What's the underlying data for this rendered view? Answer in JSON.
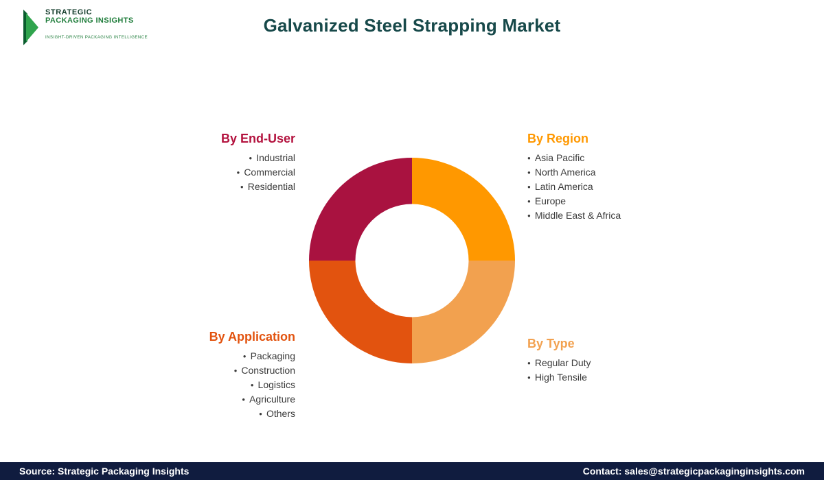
{
  "header": {
    "logo": {
      "line1": "STRATEGIC",
      "line2": "PACKAGING INSIGHTS",
      "tagline": "INSIGHT-DRIVEN PACKAGING INTELLIGENCE",
      "green_dark": "#0a5c2e",
      "green_light": "#2fa44d"
    },
    "title": "Galvanized Steel Strapping Market",
    "title_color": "#17494a"
  },
  "chart_data": {
    "type": "pie",
    "title": "Market segmentation donut (four equal quadrants)",
    "inner_radius_ratio": 0.55,
    "segments": [
      {
        "label": "By Region",
        "value": 25,
        "color": "#ff9800",
        "position": "top-right"
      },
      {
        "label": "By Type",
        "value": 25,
        "color": "#f2a14f",
        "position": "bottom-right"
      },
      {
        "label": "By Application",
        "value": 25,
        "color": "#e2530f",
        "position": "bottom-left"
      },
      {
        "label": "By End-User",
        "value": 25,
        "color": "#a91240",
        "position": "top-left"
      }
    ]
  },
  "sections": {
    "end_user": {
      "heading": "By End-User",
      "color": "#b3123e",
      "items": [
        "Industrial",
        "Commercial",
        "Residential"
      ]
    },
    "region": {
      "heading": "By Region",
      "color": "#ff9800",
      "items": [
        "Asia Pacific",
        "North America",
        "Latin America",
        "Europe",
        "Middle East & Africa"
      ]
    },
    "application": {
      "heading": "By Application",
      "color": "#e2530f",
      "items": [
        "Packaging",
        "Construction",
        "Logistics",
        "Agriculture",
        "Others"
      ]
    },
    "type": {
      "heading": "By Type",
      "color": "#f2a14f",
      "items": [
        "Regular Duty",
        "High Tensile"
      ]
    }
  },
  "footer": {
    "source": "Source: Strategic Packaging Insights",
    "contact": "Contact: sales@strategicpackaginginsights.com",
    "bg": "#101c3f"
  }
}
